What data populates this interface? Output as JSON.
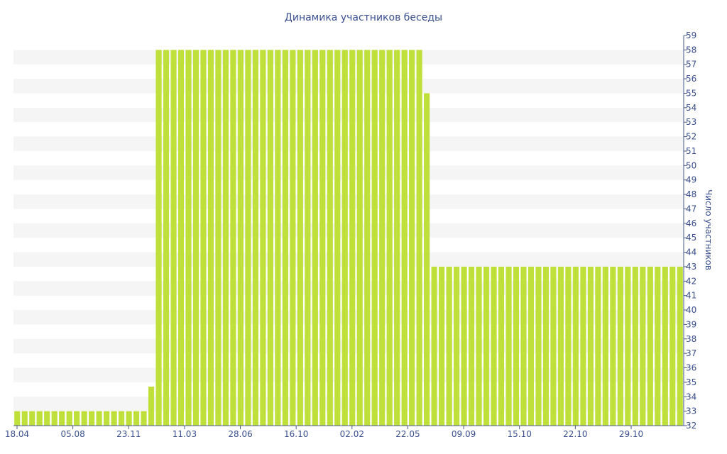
{
  "chart_data": {
    "type": "bar",
    "title": "Динамика участников беседы",
    "xlabel": "",
    "ylabel": "Число участников",
    "ylim": [
      32,
      59
    ],
    "y_ticks": [
      32,
      33,
      34,
      35,
      36,
      37,
      38,
      39,
      40,
      41,
      42,
      43,
      44,
      45,
      46,
      47,
      48,
      49,
      50,
      51,
      52,
      53,
      54,
      55,
      56,
      57,
      58,
      59
    ],
    "x_tick_labels": [
      "18.04",
      "05.08",
      "23.11",
      "11.03",
      "28.06",
      "16.10",
      "02.02",
      "22.05",
      "09.09",
      "15.10",
      "22.10",
      "29.10"
    ],
    "grid": "horizontal alternating bands",
    "bar_color": "#bfe03a",
    "band_color": "#f5f5f5",
    "text_color": "#3a4f8f",
    "values": [
      33,
      33,
      33,
      33,
      33,
      33,
      33,
      33,
      33,
      33,
      33,
      33,
      33,
      33,
      33,
      33,
      33,
      33,
      34.7,
      58,
      58,
      58,
      58,
      58,
      58,
      58,
      58,
      58,
      58,
      58,
      58,
      58,
      58,
      58,
      58,
      58,
      58,
      58,
      58,
      58,
      58,
      58,
      58,
      58,
      58,
      58,
      58,
      58,
      58,
      58,
      58,
      58,
      58,
      58,
      58,
      55,
      43,
      43,
      43,
      43,
      43,
      43,
      43,
      43,
      43,
      43,
      43,
      43,
      43,
      43,
      43,
      43,
      43,
      43,
      43,
      43,
      43,
      43,
      43,
      43,
      43,
      43,
      43,
      43,
      43,
      43,
      43,
      43,
      43,
      43
    ]
  }
}
